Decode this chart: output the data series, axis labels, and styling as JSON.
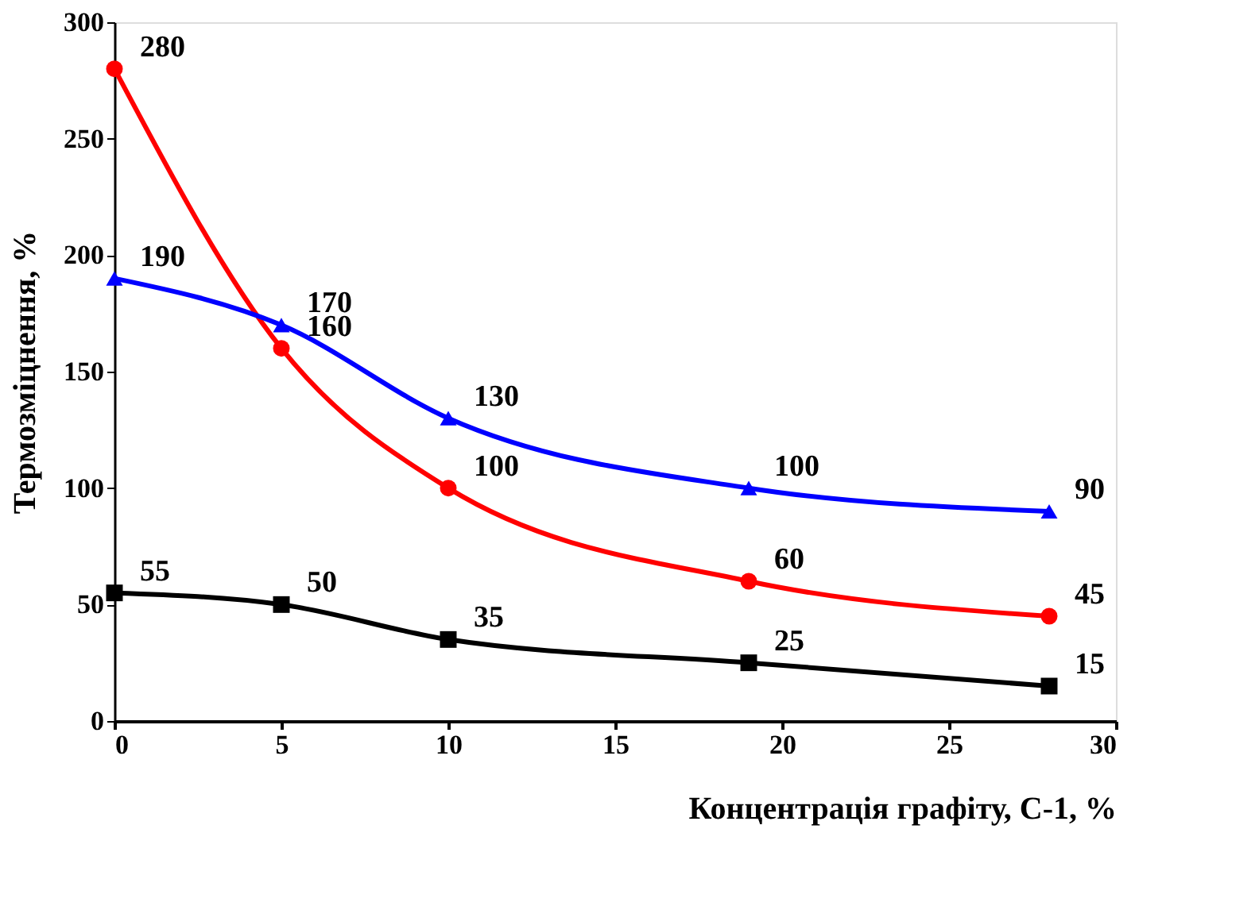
{
  "chart_data": {
    "type": "line",
    "xlabel": "Концентрація графіту, С-1, %",
    "ylabel": "Термозміцнення,  %",
    "x": [
      0,
      5,
      10,
      19,
      28
    ],
    "series": [
      {
        "color": "#ff0000",
        "marker": "circle",
        "values": [
          280,
          160,
          100,
          60,
          45
        ]
      },
      {
        "color": "#0000ff",
        "marker": "triangle",
        "values": [
          190,
          170,
          130,
          100,
          90
        ]
      },
      {
        "color": "#000000",
        "marker": "square",
        "values": [
          55,
          50,
          35,
          25,
          15
        ]
      }
    ],
    "xlim": [
      0,
      30
    ],
    "xticks": [
      0,
      5,
      10,
      15,
      20,
      25,
      30
    ],
    "ylim": [
      0,
      300
    ],
    "yticks": [
      0,
      50,
      100,
      150,
      200,
      250,
      300
    ],
    "data_labels": true,
    "grid": false,
    "legend": false,
    "line_style": "solid"
  }
}
